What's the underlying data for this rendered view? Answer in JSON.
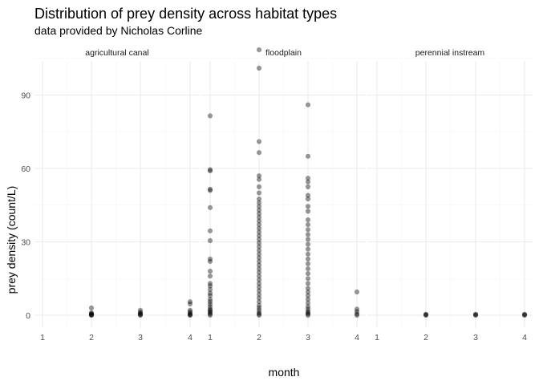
{
  "chart_data": {
    "type": "scatter",
    "title": "Distribution of prey density across habitat types",
    "subtitle": "data provided by Nicholas Corline",
    "xlabel": "month",
    "ylabel": "prey density (count/L)",
    "x_ticks": [
      1,
      2,
      3,
      4
    ],
    "y_ticks": [
      0,
      30,
      60,
      90
    ],
    "xlim": [
      1,
      4
    ],
    "ylim": [
      0,
      110
    ],
    "grid": true,
    "facets": [
      {
        "label": "agricultural canal",
        "points": [
          [
            2,
            3.0
          ],
          [
            2,
            1.0
          ],
          [
            2,
            0.7
          ],
          [
            2,
            0.4
          ],
          [
            2,
            0.2
          ],
          [
            2,
            0.1
          ],
          [
            2,
            0.0
          ],
          [
            3,
            2.0
          ],
          [
            3,
            1.2
          ],
          [
            3,
            0.8
          ],
          [
            3,
            0.5
          ],
          [
            3,
            0.2
          ],
          [
            3,
            0.0
          ],
          [
            4,
            5.5
          ],
          [
            4,
            4.6
          ],
          [
            4,
            2.0
          ],
          [
            4,
            1.4
          ],
          [
            4,
            0.8
          ],
          [
            4,
            0.4
          ],
          [
            4,
            0.1
          ],
          [
            4,
            0.0
          ]
        ]
      },
      {
        "label": "floodplain",
        "points": [
          [
            1,
            81.5
          ],
          [
            1,
            59.5
          ],
          [
            1,
            59.0
          ],
          [
            1,
            51.5
          ],
          [
            1,
            51.0
          ],
          [
            1,
            44.0
          ],
          [
            1,
            34.5
          ],
          [
            1,
            30.5
          ],
          [
            1,
            23.0
          ],
          [
            1,
            22.0
          ],
          [
            1,
            18.0
          ],
          [
            1,
            16.0
          ],
          [
            1,
            13.0
          ],
          [
            1,
            12.0
          ],
          [
            1,
            10.5
          ],
          [
            1,
            9.0
          ],
          [
            1,
            8.0
          ],
          [
            1,
            6.5
          ],
          [
            1,
            5.5
          ],
          [
            1,
            4.5
          ],
          [
            1,
            3.5
          ],
          [
            1,
            2.5
          ],
          [
            1,
            2.0
          ],
          [
            1,
            1.5
          ],
          [
            1,
            1.0
          ],
          [
            1,
            0.5
          ],
          [
            1,
            0.0
          ],
          [
            2,
            108.5
          ],
          [
            2,
            101.0
          ],
          [
            2,
            71.0
          ],
          [
            2,
            66.5
          ],
          [
            2,
            57.0
          ],
          [
            2,
            55.5
          ],
          [
            2,
            52.5
          ],
          [
            2,
            50.0
          ],
          [
            2,
            47.5
          ],
          [
            2,
            46.0
          ],
          [
            2,
            44.5
          ],
          [
            2,
            43.0
          ],
          [
            2,
            41.5
          ],
          [
            2,
            40.0
          ],
          [
            2,
            38.5
          ],
          [
            2,
            37.0
          ],
          [
            2,
            35.5
          ],
          [
            2,
            34.0
          ],
          [
            2,
            32.5
          ],
          [
            2,
            31.0
          ],
          [
            2,
            29.5
          ],
          [
            2,
            28.0
          ],
          [
            2,
            26.5
          ],
          [
            2,
            25.0
          ],
          [
            2,
            23.5
          ],
          [
            2,
            22.0
          ],
          [
            2,
            20.5
          ],
          [
            2,
            19.0
          ],
          [
            2,
            17.5
          ],
          [
            2,
            16.0
          ],
          [
            2,
            14.5
          ],
          [
            2,
            13.0
          ],
          [
            2,
            11.5
          ],
          [
            2,
            10.0
          ],
          [
            2,
            8.5
          ],
          [
            2,
            7.0
          ],
          [
            2,
            5.5
          ],
          [
            2,
            4.0
          ],
          [
            2,
            3.0
          ],
          [
            2,
            2.0
          ],
          [
            2,
            1.0
          ],
          [
            2,
            0.5
          ],
          [
            2,
            0.0
          ],
          [
            3,
            86.0
          ],
          [
            3,
            65.0
          ],
          [
            3,
            56.0
          ],
          [
            3,
            54.5
          ],
          [
            3,
            52.5
          ],
          [
            3,
            49.0
          ],
          [
            3,
            47.5
          ],
          [
            3,
            44.5
          ],
          [
            3,
            42.5
          ],
          [
            3,
            39.0
          ],
          [
            3,
            37.0
          ],
          [
            3,
            35.0
          ],
          [
            3,
            33.0
          ],
          [
            3,
            31.0
          ],
          [
            3,
            29.0
          ],
          [
            3,
            27.0
          ],
          [
            3,
            25.0
          ],
          [
            3,
            23.0
          ],
          [
            3,
            21.0
          ],
          [
            3,
            19.0
          ],
          [
            3,
            17.0
          ],
          [
            3,
            15.0
          ],
          [
            3,
            13.0
          ],
          [
            3,
            11.0
          ],
          [
            3,
            9.5
          ],
          [
            3,
            8.0
          ],
          [
            3,
            6.5
          ],
          [
            3,
            5.0
          ],
          [
            3,
            3.5
          ],
          [
            3,
            2.5
          ],
          [
            3,
            1.5
          ],
          [
            3,
            1.0
          ],
          [
            3,
            0.5
          ],
          [
            3,
            0.0
          ],
          [
            4,
            9.5
          ],
          [
            4,
            2.5
          ],
          [
            4,
            1.5
          ],
          [
            4,
            0.5
          ],
          [
            4,
            0.0
          ]
        ]
      },
      {
        "label": "perennial instream",
        "points": [
          [
            2,
            0.4
          ],
          [
            2,
            0.2
          ],
          [
            2,
            0.0
          ],
          [
            3,
            0.4
          ],
          [
            3,
            0.2
          ],
          [
            3,
            0.0
          ],
          [
            4,
            0.4
          ],
          [
            4,
            0.2
          ],
          [
            4,
            0.0
          ]
        ]
      }
    ]
  }
}
